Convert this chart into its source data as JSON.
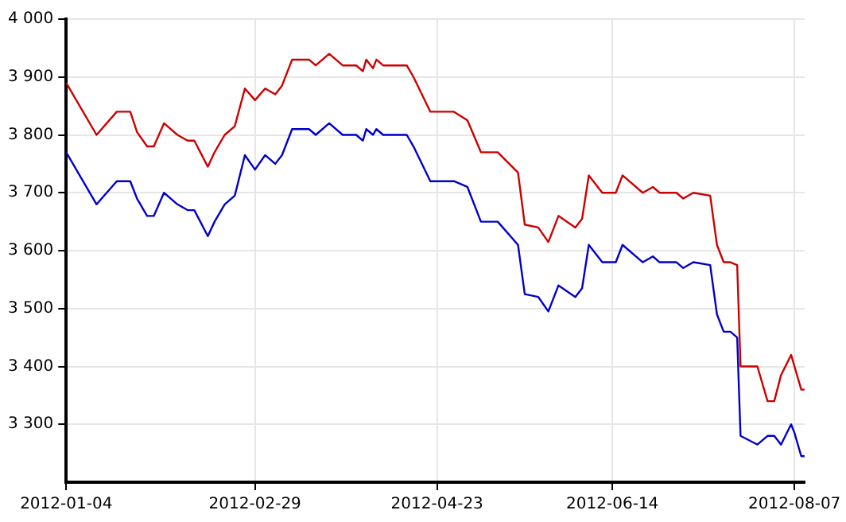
{
  "chart_data": {
    "type": "line",
    "x": [
      "2012-01-04",
      "2012-01-07",
      "2012-01-13",
      "2012-01-19",
      "2012-01-23",
      "2012-01-25",
      "2012-01-28",
      "2012-01-30",
      "2012-02-02",
      "2012-02-06",
      "2012-02-09",
      "2012-02-11",
      "2012-02-15",
      "2012-02-17",
      "2012-02-20",
      "2012-02-23",
      "2012-02-26",
      "2012-02-29",
      "2012-03-03",
      "2012-03-06",
      "2012-03-08",
      "2012-03-11",
      "2012-03-16",
      "2012-03-18",
      "2012-03-22",
      "2012-03-26",
      "2012-03-30",
      "2012-04-01",
      "2012-04-02",
      "2012-04-04",
      "2012-04-05",
      "2012-04-07",
      "2012-04-14",
      "2012-04-16",
      "2012-04-21",
      "2012-04-28",
      "2012-05-02",
      "2012-05-06",
      "2012-05-11",
      "2012-05-17",
      "2012-05-19",
      "2012-05-23",
      "2012-05-26",
      "2012-05-29",
      "2012-06-03",
      "2012-06-05",
      "2012-06-07",
      "2012-06-11",
      "2012-06-15",
      "2012-06-17",
      "2012-06-23",
      "2012-06-26",
      "2012-06-28",
      "2012-07-03",
      "2012-07-05",
      "2012-07-08",
      "2012-07-13",
      "2012-07-15",
      "2012-07-17",
      "2012-07-19",
      "2012-07-21",
      "2012-07-22",
      "2012-07-27",
      "2012-07-30",
      "2012-08-01",
      "2012-08-03",
      "2012-08-06",
      "2012-08-07",
      "2012-08-09",
      "2012-08-10"
    ],
    "series": [
      {
        "color": "#cc0000",
        "values": [
          3890,
          3860,
          3800,
          3840,
          3840,
          3805,
          3780,
          3780,
          3820,
          3800,
          3790,
          3790,
          3745,
          3770,
          3800,
          3815,
          3880,
          3860,
          3880,
          3870,
          3885,
          3930,
          3930,
          3920,
          3940,
          3920,
          3920,
          3910,
          3930,
          3915,
          3930,
          3920,
          3920,
          3900,
          3840,
          3840,
          3825,
          3770,
          3770,
          3735,
          3645,
          3640,
          3615,
          3660,
          3640,
          3655,
          3730,
          3700,
          3700,
          3730,
          3700,
          3710,
          3700,
          3700,
          3690,
          3700,
          3695,
          3610,
          3580,
          3580,
          3575,
          3400,
          3400,
          3340,
          3340,
          3385,
          3420,
          3400,
          3360,
          3360
        ]
      },
      {
        "color": "#0000cc",
        "values": [
          3770,
          3740,
          3680,
          3720,
          3720,
          3690,
          3660,
          3660,
          3700,
          3680,
          3670,
          3670,
          3625,
          3650,
          3680,
          3695,
          3765,
          3740,
          3765,
          3750,
          3765,
          3810,
          3810,
          3800,
          3820,
          3800,
          3800,
          3790,
          3810,
          3800,
          3810,
          3800,
          3800,
          3780,
          3720,
          3720,
          3710,
          3650,
          3650,
          3610,
          3525,
          3520,
          3495,
          3540,
          3520,
          3535,
          3610,
          3580,
          3580,
          3610,
          3580,
          3590,
          3580,
          3580,
          3570,
          3580,
          3575,
          3490,
          3460,
          3460,
          3450,
          3280,
          3265,
          3280,
          3280,
          3265,
          3300,
          3285,
          3245,
          3245
        ]
      }
    ],
    "xlim": [
      "2012-01-04",
      "2012-08-10"
    ],
    "xticks": [
      "2012-01-04",
      "2012-02-29",
      "2012-04-23",
      "2012-06-14",
      "2012-08-07"
    ],
    "ylim": [
      3200,
      4000
    ],
    "yticks": [
      {
        "value": 3300,
        "label": "3 300"
      },
      {
        "value": 3400,
        "label": "3 400"
      },
      {
        "value": 3500,
        "label": "3 500"
      },
      {
        "value": 3600,
        "label": "3 600"
      },
      {
        "value": 3700,
        "label": "3 700"
      },
      {
        "value": 3800,
        "label": "3 800"
      },
      {
        "value": 3900,
        "label": "3 900"
      },
      {
        "value": 4000,
        "label": "4 000"
      }
    ],
    "grid": true,
    "legend": false,
    "marker": "none",
    "line_style": "solid"
  }
}
